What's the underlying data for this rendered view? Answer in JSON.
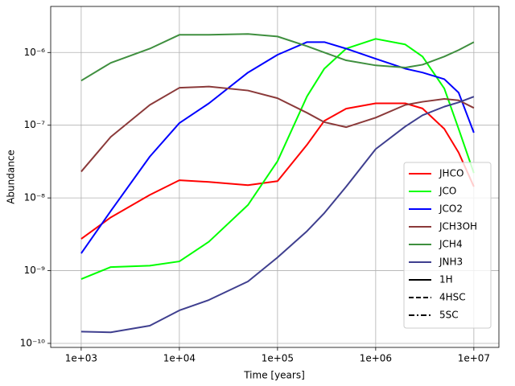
{
  "chart_data": {
    "type": "line",
    "x_label": "Time [years]",
    "y_label": "Abundance",
    "log_x": true,
    "log_y": true,
    "grid": true,
    "legend_position": "lower right",
    "xlim": [
      489,
      18000000
    ],
    "ylim": [
      8.8e-11,
      4.3e-06
    ],
    "xticks": [
      {
        "value": 1000,
        "label": "1e+03"
      },
      {
        "value": 10000,
        "label": "1e+04"
      },
      {
        "value": 100000,
        "label": "1e+05"
      },
      {
        "value": 1000000,
        "label": "1e+06"
      },
      {
        "value": 10000000,
        "label": "1e+07"
      }
    ],
    "yticks": [
      {
        "value": 1e-10,
        "label": "10⁻¹⁰"
      },
      {
        "value": 1e-09,
        "label": "10⁻⁹"
      },
      {
        "value": 1e-08,
        "label": "10⁻⁸"
      },
      {
        "value": 1e-07,
        "label": "10⁻⁷"
      },
      {
        "value": 1e-06,
        "label": "10⁻⁶"
      }
    ],
    "x": [
      1000,
      2000,
      5000,
      10000,
      20000,
      50000,
      100000,
      200000,
      300000,
      500000,
      1000000,
      2000000,
      3000000,
      5000000,
      7000000,
      10000000
    ],
    "series": [
      {
        "name": "JHCO",
        "color": "#ff0000",
        "values": [
          2.73e-09,
          5.4e-09,
          1.1e-08,
          1.75e-08,
          1.66e-08,
          1.5e-08,
          1.7e-08,
          5.4e-08,
          1.15e-07,
          1.69e-07,
          2e-07,
          2e-07,
          1.7e-07,
          8.9e-08,
          4.2e-08,
          1.43e-08
        ]
      },
      {
        "name": "JCO",
        "color": "#00ff00",
        "values": [
          7.66e-10,
          1.12e-09,
          1.17e-09,
          1.34e-09,
          2.5e-09,
          8e-09,
          3.2e-08,
          2.5e-07,
          6e-07,
          1.13e-06,
          1.54e-06,
          1.29e-06,
          8.8e-07,
          3.2e-07,
          8.9e-08,
          2.2e-08
        ]
      },
      {
        "name": "JCO2",
        "color": "#0000ff",
        "values": [
          1.73e-09,
          6.6e-09,
          3.7e-08,
          1.07e-07,
          2e-07,
          5.3e-07,
          9.3e-07,
          1.39e-06,
          1.39e-06,
          1.13e-06,
          8.2e-07,
          6e-07,
          5.3e-07,
          4.3e-07,
          2.8e-07,
          7.9e-08
        ]
      },
      {
        "name": "JCH3OH",
        "color": "#8b3a3a",
        "values": [
          2.3e-08,
          6.9e-08,
          1.9e-07,
          3.27e-07,
          3.4e-07,
          3e-07,
          2.35e-07,
          1.48e-07,
          1.1e-07,
          9.4e-08,
          1.27e-07,
          1.9e-07,
          2.1e-07,
          2.3e-07,
          2.2e-07,
          1.73e-07
        ]
      },
      {
        "name": "JCH4",
        "color": "#3f8f3f",
        "values": [
          4.1e-07,
          7.2e-07,
          1.13e-06,
          1.75e-06,
          1.75e-06,
          1.8e-06,
          1.66e-06,
          1.22e-06,
          1e-06,
          7.8e-07,
          6.65e-07,
          6.2e-07,
          6.8e-07,
          8.8e-07,
          1.08e-06,
          1.39e-06
        ]
      },
      {
        "name": "JNH3",
        "color": "#3f3f8f",
        "values": [
          1.45e-10,
          1.42e-10,
          1.75e-10,
          2.84e-10,
          3.95e-10,
          7.1e-10,
          1.52e-09,
          3.5e-09,
          6.2e-09,
          1.43e-08,
          4.7e-08,
          9.6e-08,
          1.37e-07,
          1.8e-07,
          2.06e-07,
          2.47e-07
        ]
      }
    ],
    "line_styles": [
      {
        "name": "1H",
        "dash": "solid",
        "color": "#000000"
      },
      {
        "name": "4HSC",
        "dash": "dashed",
        "color": "#000000"
      },
      {
        "name": "5SC",
        "dash": "dashdot",
        "color": "#000000"
      }
    ]
  }
}
